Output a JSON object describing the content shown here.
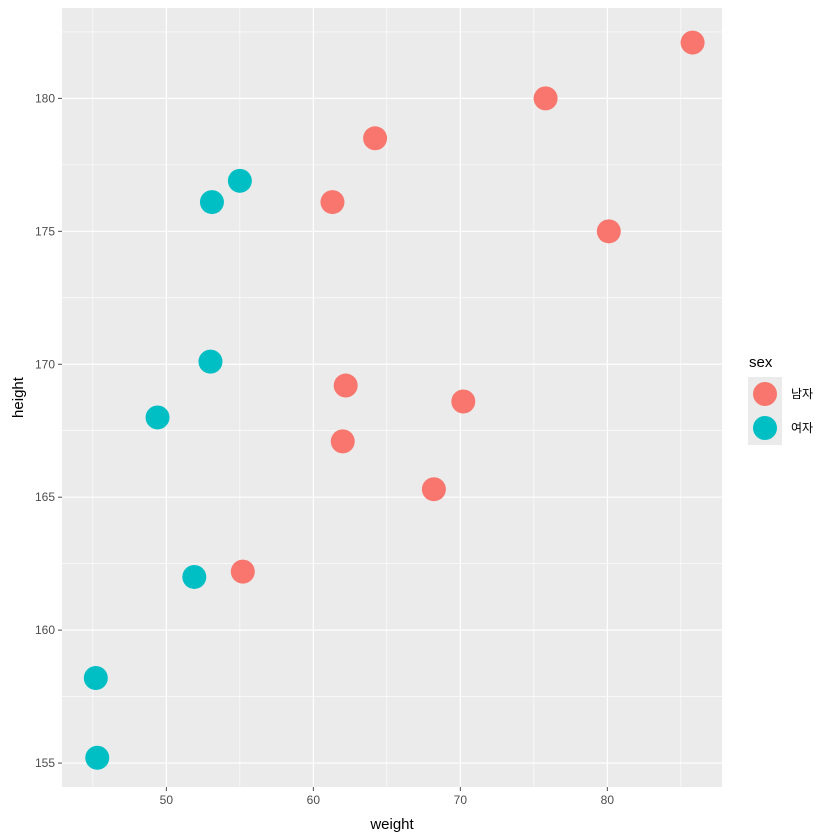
{
  "chart_data": {
    "type": "scatter",
    "xlabel": "weight",
    "ylabel": "height",
    "xlim": [
      42.9,
      87.8
    ],
    "ylim": [
      154.1,
      183.4
    ],
    "xticks": [
      50,
      60,
      70,
      80
    ],
    "yticks": [
      155,
      160,
      165,
      170,
      175,
      180
    ],
    "grid": true,
    "legend": {
      "title": "sex",
      "placement": "right",
      "entries": [
        {
          "label": "남자",
          "color": "#F8766D"
        },
        {
          "label": "여자",
          "color": "#00BFC4"
        }
      ]
    },
    "series": [
      {
        "name": "남자",
        "color": "#F8766D",
        "points": [
          {
            "x": 85.8,
            "y": 182.1
          },
          {
            "x": 75.8,
            "y": 180.0
          },
          {
            "x": 64.2,
            "y": 178.5
          },
          {
            "x": 61.3,
            "y": 176.1
          },
          {
            "x": 80.1,
            "y": 175.0
          },
          {
            "x": 62.2,
            "y": 169.2
          },
          {
            "x": 70.2,
            "y": 168.6
          },
          {
            "x": 62.0,
            "y": 167.1
          },
          {
            "x": 68.2,
            "y": 165.3
          },
          {
            "x": 55.2,
            "y": 162.2
          }
        ]
      },
      {
        "name": "여자",
        "color": "#00BFC4",
        "points": [
          {
            "x": 55.0,
            "y": 176.9
          },
          {
            "x": 53.1,
            "y": 176.1
          },
          {
            "x": 53.0,
            "y": 170.1
          },
          {
            "x": 49.4,
            "y": 168.0
          },
          {
            "x": 51.9,
            "y": 162.0
          },
          {
            "x": 45.2,
            "y": 158.2
          },
          {
            "x": 45.3,
            "y": 155.2
          }
        ]
      }
    ]
  },
  "colors": {
    "panel_background": "#EBEBEB",
    "grid_major": "#FFFFFF",
    "tick": "#4D4D4D"
  }
}
